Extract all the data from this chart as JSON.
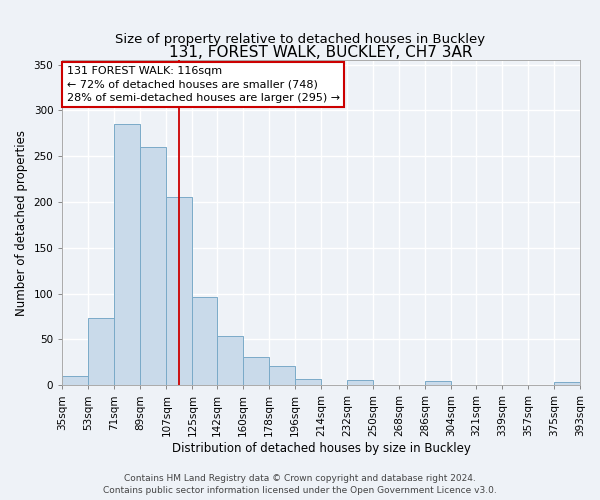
{
  "title": "131, FOREST WALK, BUCKLEY, CH7 3AR",
  "subtitle": "Size of property relative to detached houses in Buckley",
  "xlabel": "Distribution of detached houses by size in Buckley",
  "ylabel": "Number of detached properties",
  "bar_left_edges": [
    35,
    53,
    71,
    89,
    107,
    125,
    142,
    160,
    178,
    196,
    214,
    232,
    250,
    268,
    286,
    304,
    321,
    339,
    357,
    375
  ],
  "bar_widths": [
    18,
    18,
    18,
    18,
    18,
    17,
    18,
    18,
    18,
    18,
    18,
    18,
    18,
    18,
    18,
    17,
    18,
    18,
    18,
    18
  ],
  "bar_heights": [
    10,
    73,
    285,
    260,
    205,
    96,
    54,
    31,
    21,
    7,
    0,
    6,
    0,
    0,
    5,
    0,
    0,
    0,
    0,
    4
  ],
  "bar_color": "#c9daea",
  "bar_edge_color": "#7aaac8",
  "vline_x": 116,
  "vline_color": "#cc0000",
  "annotation_text": "131 FOREST WALK: 116sqm\n← 72% of detached houses are smaller (748)\n28% of semi-detached houses are larger (295) →",
  "annotation_box_color": "#ffffff",
  "annotation_box_edge_color": "#cc0000",
  "ylim": [
    0,
    355
  ],
  "xlim": [
    35,
    393
  ],
  "xtick_labels": [
    "35sqm",
    "53sqm",
    "71sqm",
    "89sqm",
    "107sqm",
    "125sqm",
    "142sqm",
    "160sqm",
    "178sqm",
    "196sqm",
    "214sqm",
    "232sqm",
    "250sqm",
    "268sqm",
    "286sqm",
    "304sqm",
    "321sqm",
    "339sqm",
    "357sqm",
    "375sqm",
    "393sqm"
  ],
  "xtick_positions": [
    35,
    53,
    71,
    89,
    107,
    125,
    142,
    160,
    178,
    196,
    214,
    232,
    250,
    268,
    286,
    304,
    321,
    339,
    357,
    375,
    393
  ],
  "ytick_positions": [
    0,
    50,
    100,
    150,
    200,
    250,
    300,
    350
  ],
  "footer_line1": "Contains HM Land Registry data © Crown copyright and database right 2024.",
  "footer_line2": "Contains public sector information licensed under the Open Government Licence v3.0.",
  "background_color": "#eef2f7",
  "grid_color": "#ffffff",
  "title_fontsize": 11,
  "subtitle_fontsize": 9.5,
  "axis_label_fontsize": 8.5,
  "tick_fontsize": 7.5,
  "annotation_fontsize": 8,
  "footer_fontsize": 6.5
}
